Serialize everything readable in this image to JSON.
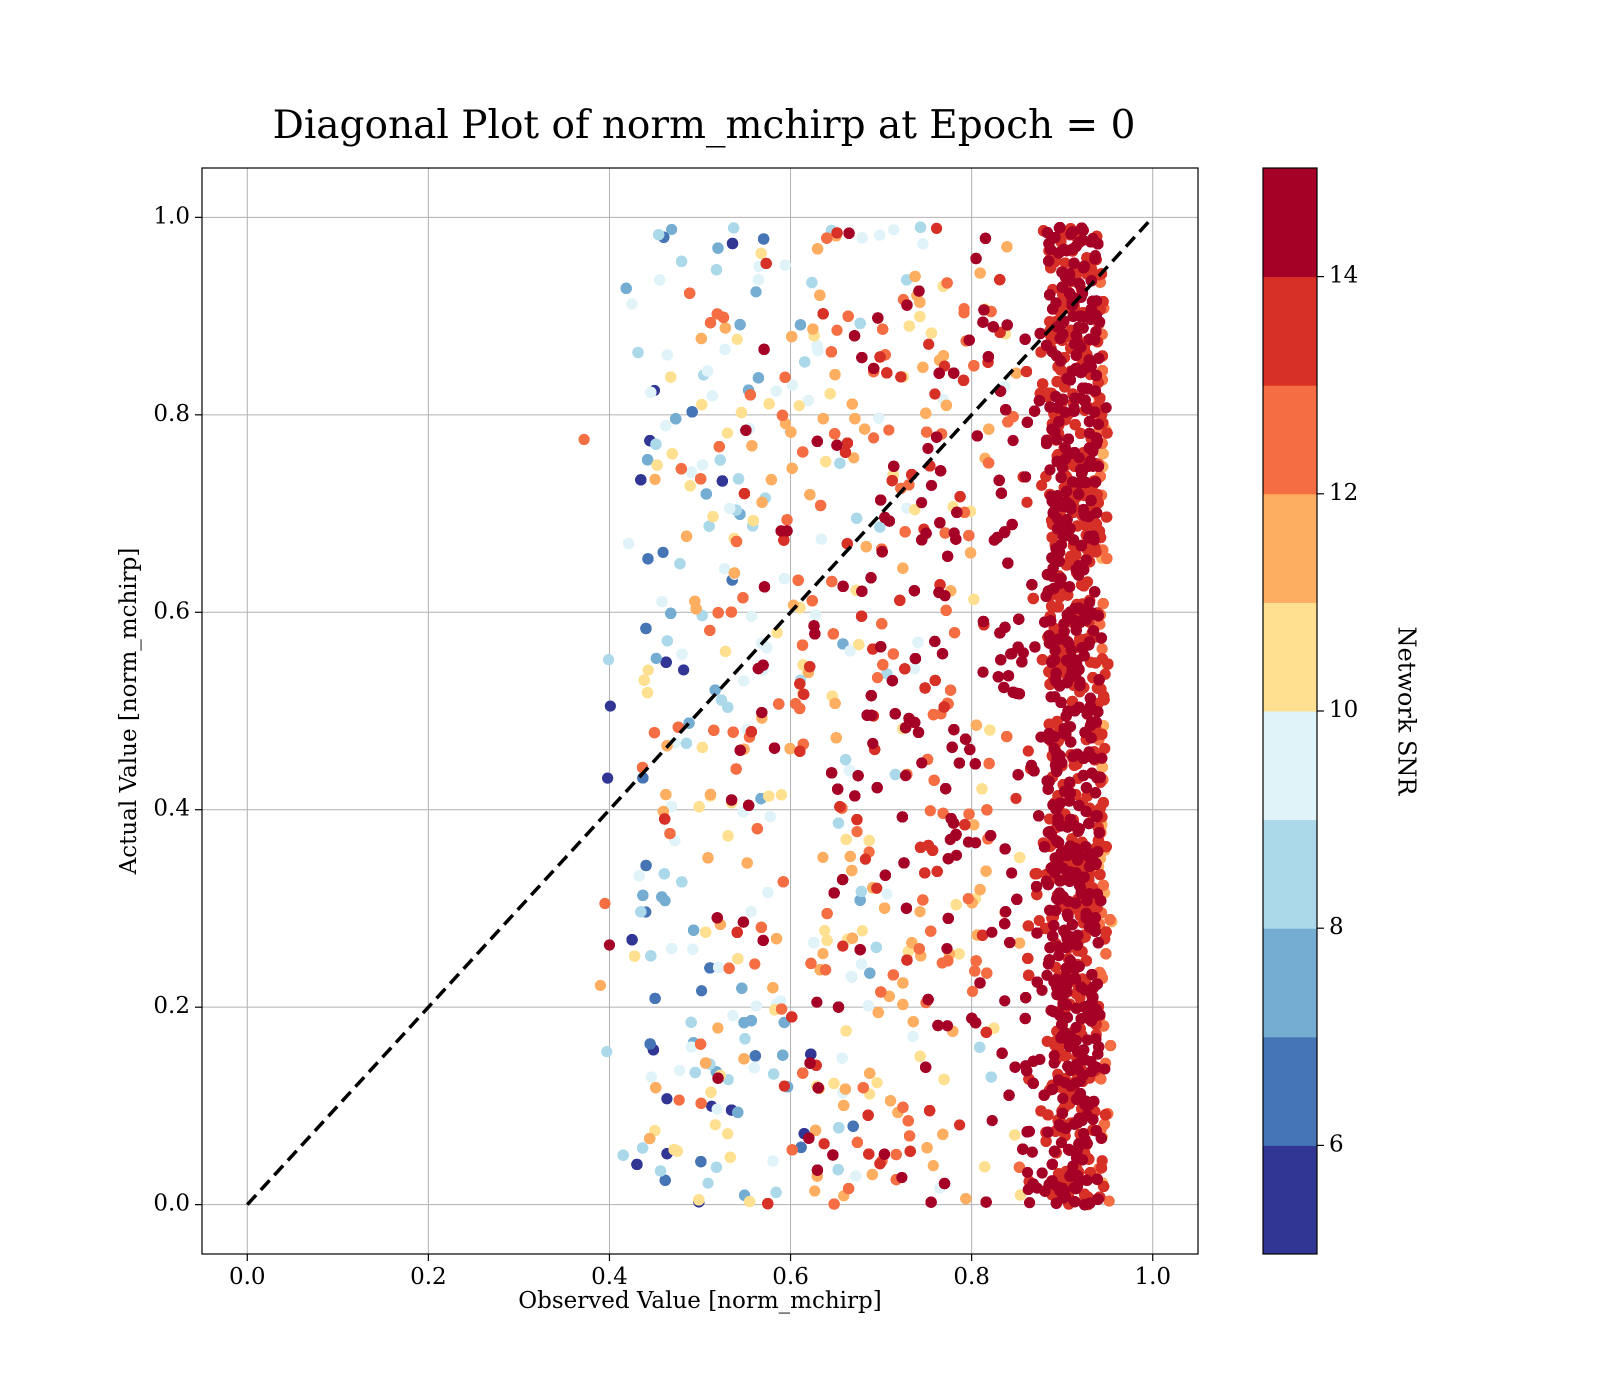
{
  "chart_data": {
    "type": "scatter",
    "title": "Diagonal Plot of norm_mchirp at Epoch = 0",
    "xlabel": "Observed Value [norm_mchirp]",
    "ylabel": "Actual Value [norm_mchirp]",
    "xlim": [
      -0.05,
      1.05
    ],
    "ylim": [
      -0.05,
      1.05
    ],
    "x_ticks": [
      0.0,
      0.2,
      0.4,
      0.6,
      0.8,
      1.0
    ],
    "x_tick_labels": [
      "0.0",
      "0.2",
      "0.4",
      "0.6",
      "0.8",
      "1.0"
    ],
    "y_ticks": [
      0.0,
      0.2,
      0.4,
      0.6,
      0.8,
      1.0
    ],
    "y_tick_labels": [
      "0.0",
      "0.2",
      "0.4",
      "0.6",
      "0.8",
      "1.0"
    ],
    "grid": true,
    "reference_line": {
      "x": [
        0,
        1
      ],
      "y": [
        0,
        1
      ],
      "style": "dashed",
      "color": "#000000"
    },
    "colorbar": {
      "label": "Network SNR",
      "range": [
        5,
        15
      ],
      "ticks": [
        6,
        8,
        10,
        12,
        14
      ],
      "tick_labels": [
        "6",
        "8",
        "10",
        "12",
        "14"
      ],
      "colors": [
        "#313695",
        "#4575b4",
        "#74add1",
        "#abd9e9",
        "#e0f3f8",
        "#fee090",
        "#fdae61",
        "#f46d43",
        "#d73027",
        "#a50026"
      ]
    },
    "point_distribution": {
      "approximate_count": 9000,
      "x_range": [
        0.37,
        0.96
      ],
      "y_range": [
        0.0,
        1.0
      ],
      "outliers": [
        {
          "x": 0.372,
          "y": 0.775,
          "snr": 12.5
        },
        {
          "x": 0.39,
          "y": 0.222,
          "snr": 11.5
        },
        {
          "x": 0.395,
          "y": 0.305,
          "snr": 12.5
        },
        {
          "x": 0.4,
          "y": 0.263,
          "snr": 14.5
        },
        {
          "x": 0.397,
          "y": 0.155,
          "snr": 8.5
        },
        {
          "x": 0.401,
          "y": 0.505,
          "snr": 5.5
        },
        {
          "x": 0.398,
          "y": 0.432,
          "snr": 5.5
        },
        {
          "x": 0.399,
          "y": 0.552,
          "snr": 8.5
        },
        {
          "x": 0.864,
          "y": 0.002,
          "snr": 14.5
        },
        {
          "x": 0.947,
          "y": 0.462,
          "snr": 13.5
        }
      ]
    }
  }
}
